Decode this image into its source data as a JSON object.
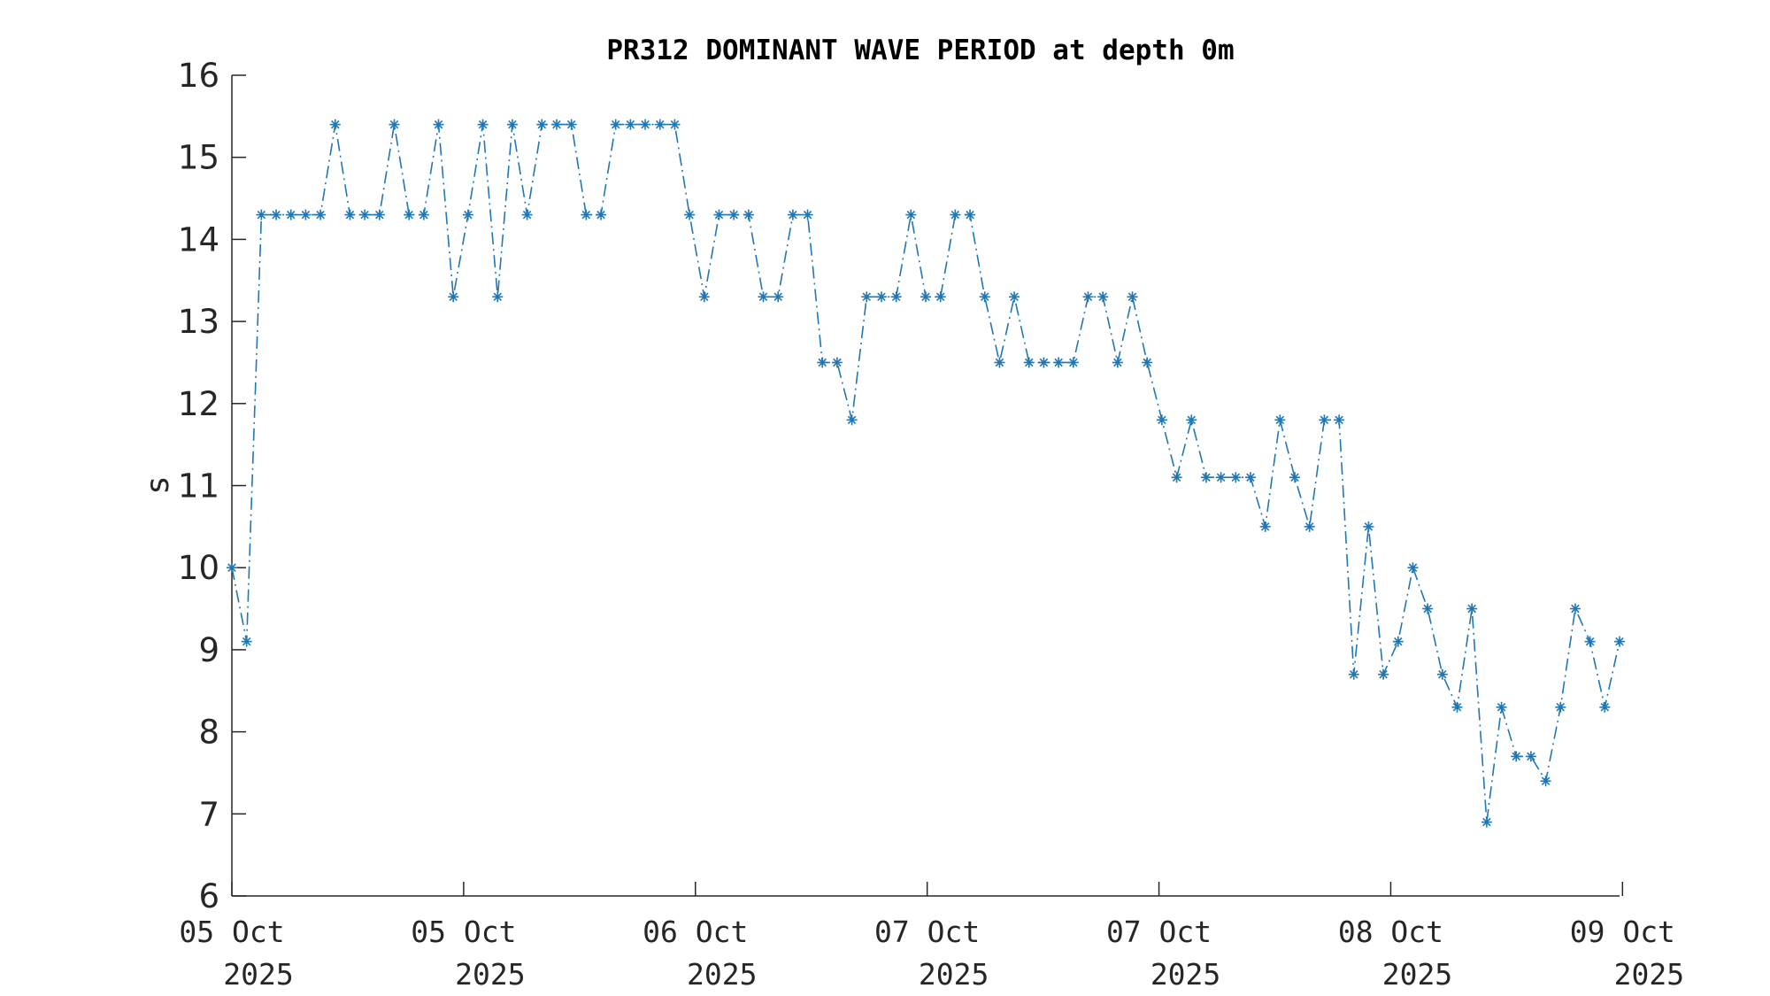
{
  "chart_data": {
    "type": "line",
    "title": "PR312 DOMINANT WAVE PERIOD at depth 0m",
    "ylabel": "s",
    "xlabel": "",
    "ylim": [
      6,
      16
    ],
    "yticks": [
      6,
      7,
      8,
      9,
      10,
      11,
      12,
      13,
      14,
      15,
      16
    ],
    "grid": false,
    "legend": "none",
    "line_style": "dash-dot",
    "marker": "asterisk",
    "color": "#1f77b4",
    "xlim_index": [
      0,
      94
    ],
    "x_ticks": [
      {
        "index": 0,
        "line1": "05 Oct",
        "line2": "2025"
      },
      {
        "index": 15.7,
        "line1": "05 Oct",
        "line2": "2025"
      },
      {
        "index": 31.4,
        "line1": "06 Oct",
        "line2": "2025"
      },
      {
        "index": 47.1,
        "line1": "07 Oct",
        "line2": "2025"
      },
      {
        "index": 62.8,
        "line1": "07 Oct",
        "line2": "2025"
      },
      {
        "index": 78.5,
        "line1": "08 Oct",
        "line2": "2025"
      },
      {
        "index": 94.2,
        "line1": "09 Oct",
        "line2": "2025"
      }
    ],
    "series": [
      {
        "values": [
          10.0,
          9.1,
          14.3,
          14.3,
          14.3,
          14.3,
          14.3,
          15.4,
          14.3,
          14.3,
          14.3,
          15.4,
          14.3,
          14.3,
          15.4,
          13.3,
          14.3,
          15.4,
          13.3,
          15.4,
          14.3,
          15.4,
          15.4,
          15.4,
          14.3,
          14.3,
          15.4,
          15.4,
          15.4,
          15.4,
          15.4,
          14.3,
          13.3,
          14.3,
          14.3,
          14.3,
          13.3,
          13.3,
          14.3,
          14.3,
          12.5,
          12.5,
          11.8,
          13.3,
          13.3,
          13.3,
          14.3,
          13.3,
          13.3,
          14.3,
          14.3,
          13.3,
          12.5,
          13.3,
          12.5,
          12.5,
          12.5,
          12.5,
          13.3,
          13.3,
          12.5,
          13.3,
          12.5,
          11.8,
          11.1,
          11.8,
          11.1,
          11.1,
          11.1,
          11.1,
          10.5,
          11.8,
          11.1,
          10.5,
          11.8,
          11.8,
          8.7,
          10.5,
          8.7,
          9.1,
          10.0,
          9.5,
          8.7,
          8.3,
          9.5,
          6.9,
          8.3,
          7.7,
          7.7,
          7.4,
          8.3,
          9.5,
          9.1,
          8.3,
          9.1
        ]
      }
    ]
  }
}
